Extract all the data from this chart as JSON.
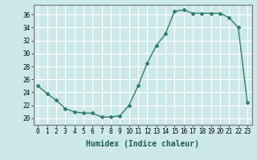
{
  "x": [
    0,
    1,
    2,
    3,
    4,
    5,
    6,
    7,
    8,
    9,
    10,
    11,
    12,
    13,
    14,
    15,
    16,
    17,
    18,
    19,
    20,
    21,
    22,
    23
  ],
  "y": [
    25.0,
    23.8,
    22.8,
    21.5,
    21.0,
    20.8,
    20.8,
    20.2,
    20.2,
    20.4,
    22.0,
    25.0,
    28.5,
    31.2,
    33.0,
    36.5,
    36.7,
    36.2,
    36.2,
    36.2,
    36.2,
    35.5,
    34.0,
    22.5
  ],
  "line_color": "#2e7d6e",
  "marker": "D",
  "marker_size": 2.0,
  "bg_color": "#cde8e8",
  "grid_color": "#ffffff",
  "xlabel": "Humidex (Indice chaleur)",
  "ylabel_ticks": [
    20,
    22,
    24,
    26,
    28,
    30,
    32,
    34,
    36
  ],
  "ylim": [
    19.0,
    37.5
  ],
  "xlim": [
    -0.5,
    23.5
  ],
  "tick_label_fontsize": 5.5,
  "xlabel_fontsize": 7.0,
  "linewidth": 1.0
}
